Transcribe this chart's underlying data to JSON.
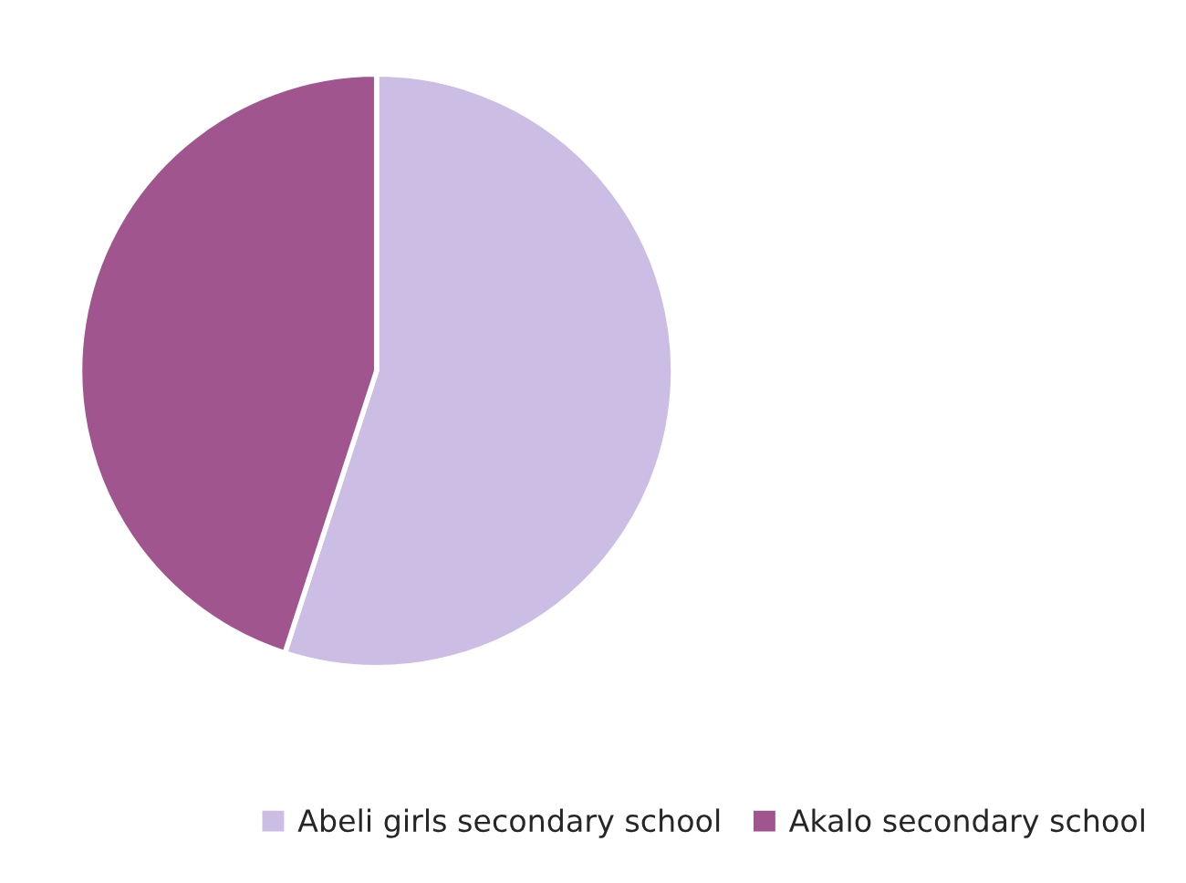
{
  "chart_data": {
    "type": "pie",
    "categories": [
      "Abeli girls secondary school",
      "Akalo secondary school"
    ],
    "values": [
      55,
      45
    ],
    "colors": [
      "#cbbde3",
      "#a1558f"
    ],
    "legend": "bottom right"
  }
}
